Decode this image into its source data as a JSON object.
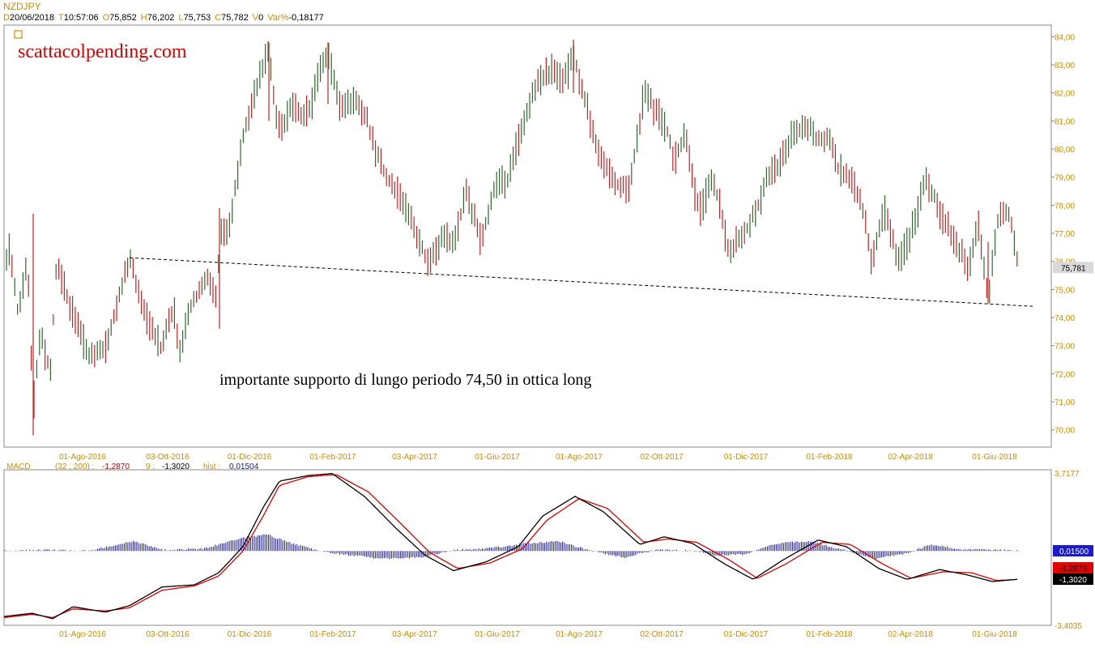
{
  "header": {
    "symbol": "NZDJPY",
    "quote": [
      {
        "key": "D",
        "value": "20/06/2018"
      },
      {
        "key": "T",
        "value": "10:57:06"
      },
      {
        "key": "O",
        "value": "75,852"
      },
      {
        "key": "H",
        "value": "76,202"
      },
      {
        "key": "L",
        "value": "75,753"
      },
      {
        "key": "C",
        "value": "75,782"
      },
      {
        "key": "V",
        "value": "0"
      },
      {
        "key": "Var%",
        "value": "-0,18177"
      }
    ]
  },
  "colors": {
    "axis_text": "#d08c00",
    "up_candle": "#2f6b2f",
    "down_candle": "#cc2222",
    "macd_line": "#000000",
    "signal_line": "#dd0000",
    "histogram": "#1a1a9a",
    "watermark": "#dd0000"
  },
  "chart_data": [
    {
      "type": "candlestick",
      "watermark": "scattacolpending.com",
      "annotation": "importante supporto di lungo periodo 74,50 in ottica long",
      "ylim": [
        69.5,
        84.3
      ],
      "y_ticks": [
        "84,00",
        "83,00",
        "82,00",
        "81,00",
        "80,00",
        "79,00",
        "78,00",
        "77,00",
        "76,00",
        "75,00",
        "74,00",
        "73,00",
        "72,00",
        "71,00",
        "70,00"
      ],
      "x_ticks": [
        "01-Ago-2016",
        "03-Ott-2016",
        "01-Dic-2016",
        "01-Feb-2017",
        "03-Apr-2017",
        "01-Giu-2017",
        "01-Ago-2017",
        "02-Ott-2017",
        "01-Dic-2017",
        "01-Feb-2018",
        "02-Apr-2018",
        "01-Giu-2018"
      ],
      "last_price_label": "75,781",
      "last_price": 75.781,
      "price_path": [
        [
          0,
          75.0
        ],
        [
          12,
          76.4
        ],
        [
          22,
          74.2
        ],
        [
          34,
          76.0
        ],
        [
          41,
          70.8
        ],
        [
          50,
          73.4
        ],
        [
          62,
          72.0
        ],
        [
          70,
          76.0
        ],
        [
          85,
          74.5
        ],
        [
          110,
          72.6
        ],
        [
          130,
          72.9
        ],
        [
          160,
          76.1
        ],
        [
          178,
          74.2
        ],
        [
          198,
          72.9
        ],
        [
          215,
          74.3
        ],
        [
          222,
          72.7
        ],
        [
          235,
          74.4
        ],
        [
          258,
          75.5
        ],
        [
          266,
          74.6
        ],
        [
          272,
          76.9
        ],
        [
          284,
          77.3
        ],
        [
          300,
          80.5
        ],
        [
          318,
          82.3
        ],
        [
          332,
          83.6
        ],
        [
          340,
          81.2
        ],
        [
          348,
          80.8
        ],
        [
          362,
          81.6
        ],
        [
          372,
          81.2
        ],
        [
          384,
          81.5
        ],
        [
          394,
          82.8
        ],
        [
          405,
          83.4
        ],
        [
          420,
          81.4
        ],
        [
          438,
          81.7
        ],
        [
          452,
          81.2
        ],
        [
          464,
          79.9
        ],
        [
          480,
          78.9
        ],
        [
          500,
          78.0
        ],
        [
          512,
          77.1
        ],
        [
          530,
          75.9
        ],
        [
          548,
          76.9
        ],
        [
          560,
          76.6
        ],
        [
          576,
          78.6
        ],
        [
          594,
          76.6
        ],
        [
          608,
          78.5
        ],
        [
          626,
          78.9
        ],
        [
          646,
          80.9
        ],
        [
          662,
          82.3
        ],
        [
          680,
          82.8
        ],
        [
          696,
          82.4
        ],
        [
          708,
          83.3
        ],
        [
          722,
          81.8
        ],
        [
          740,
          79.8
        ],
        [
          760,
          78.8
        ],
        [
          776,
          78.6
        ],
        [
          786,
          80.1
        ],
        [
          796,
          82.2
        ],
        [
          808,
          81.4
        ],
        [
          822,
          80.9
        ],
        [
          832,
          79.5
        ],
        [
          846,
          80.6
        ],
        [
          858,
          78.4
        ],
        [
          866,
          77.8
        ],
        [
          878,
          79.0
        ],
        [
          888,
          78.1
        ],
        [
          900,
          76.3
        ],
        [
          920,
          77.1
        ],
        [
          934,
          77.8
        ],
        [
          948,
          79.0
        ],
        [
          962,
          79.5
        ],
        [
          980,
          80.6
        ],
        [
          996,
          80.8
        ],
        [
          1010,
          80.4
        ],
        [
          1024,
          80.3
        ],
        [
          1034,
          79.3
        ],
        [
          1050,
          78.9
        ],
        [
          1064,
          78.1
        ],
        [
          1076,
          76.0
        ],
        [
          1092,
          77.8
        ],
        [
          1110,
          76.0
        ],
        [
          1124,
          76.9
        ],
        [
          1144,
          79.0
        ],
        [
          1160,
          77.8
        ],
        [
          1178,
          76.8
        ],
        [
          1196,
          75.8
        ],
        [
          1208,
          77.3
        ],
        [
          1220,
          74.6
        ],
        [
          1232,
          77.5
        ],
        [
          1246,
          77.7
        ],
        [
          1258,
          75.78
        ]
      ],
      "support_line": [
        [
          160,
          76.13
        ],
        [
          1275,
          74.4
        ]
      ]
    },
    {
      "type": "macd",
      "title": "MACD",
      "params": "(32 , 200) :",
      "macd_value": "-1,2870",
      "signal_label": "9 :",
      "signal_value": "-1,3020",
      "hist_label": "hist :",
      "hist_value": "0,01504",
      "ylim": [
        -3.4035,
        3.7177
      ],
      "y_max_label": "3,7177",
      "y_min_label": "-3,4035",
      "badges": [
        {
          "value": "0,01500",
          "num": 0.015,
          "style": "hist"
        },
        {
          "value": "-1,2870",
          "num": -1.287,
          "style": "macd"
        },
        {
          "value": "-1,3020",
          "num": -1.302,
          "style": "signal"
        }
      ],
      "x_ticks": [
        "01-Ago-2016",
        "03-Ott-2016",
        "01-Dic-2016",
        "01-Feb-2017",
        "03-Apr-2017",
        "01-Giu-2017",
        "01-Ago-2017",
        "02-Ott-2017",
        "01-Dic-2017",
        "01-Feb-2018",
        "02-Apr-2018",
        "01-Giu-2018"
      ],
      "macd_path": [
        [
          5,
          -3.0
        ],
        [
          40,
          -2.85
        ],
        [
          65,
          -3.1
        ],
        [
          90,
          -2.55
        ],
        [
          130,
          -2.8
        ],
        [
          160,
          -2.5
        ],
        [
          200,
          -1.65
        ],
        [
          240,
          -1.55
        ],
        [
          270,
          -1.0
        ],
        [
          300,
          0.2
        ],
        [
          325,
          2.0
        ],
        [
          345,
          3.2
        ],
        [
          380,
          3.45
        ],
        [
          410,
          3.55
        ],
        [
          450,
          2.5
        ],
        [
          490,
          1.0
        ],
        [
          525,
          -0.2
        ],
        [
          560,
          -0.9
        ],
        [
          600,
          -0.5
        ],
        [
          640,
          0.2
        ],
        [
          670,
          1.6
        ],
        [
          710,
          2.5
        ],
        [
          745,
          1.8
        ],
        [
          790,
          0.3
        ],
        [
          820,
          0.65
        ],
        [
          855,
          0.35
        ],
        [
          895,
          -0.6
        ],
        [
          930,
          -1.3
        ],
        [
          965,
          -0.45
        ],
        [
          1010,
          0.5
        ],
        [
          1045,
          0.2
        ],
        [
          1085,
          -0.8
        ],
        [
          1120,
          -1.3
        ],
        [
          1160,
          -0.85
        ],
        [
          1195,
          -1.1
        ],
        [
          1225,
          -1.4
        ],
        [
          1258,
          -1.29
        ]
      ],
      "signal_path": [
        [
          5,
          -3.05
        ],
        [
          40,
          -2.9
        ],
        [
          65,
          -3.05
        ],
        [
          90,
          -2.65
        ],
        [
          130,
          -2.75
        ],
        [
          160,
          -2.6
        ],
        [
          200,
          -1.8
        ],
        [
          240,
          -1.6
        ],
        [
          270,
          -1.15
        ],
        [
          300,
          0.0
        ],
        [
          325,
          1.6
        ],
        [
          345,
          3.0
        ],
        [
          380,
          3.4
        ],
        [
          415,
          3.5
        ],
        [
          455,
          2.7
        ],
        [
          495,
          1.25
        ],
        [
          530,
          -0.05
        ],
        [
          565,
          -0.8
        ],
        [
          605,
          -0.55
        ],
        [
          645,
          0.1
        ],
        [
          675,
          1.4
        ],
        [
          715,
          2.4
        ],
        [
          750,
          1.95
        ],
        [
          795,
          0.4
        ],
        [
          825,
          0.55
        ],
        [
          860,
          0.4
        ],
        [
          900,
          -0.4
        ],
        [
          935,
          -1.25
        ],
        [
          970,
          -0.6
        ],
        [
          1015,
          0.4
        ],
        [
          1050,
          0.3
        ],
        [
          1090,
          -0.6
        ],
        [
          1125,
          -1.25
        ],
        [
          1165,
          -0.95
        ],
        [
          1200,
          -1.0
        ],
        [
          1230,
          -1.35
        ],
        [
          1258,
          -1.3
        ]
      ],
      "hist_path": [
        [
          5,
          0.0
        ],
        [
          60,
          0.05
        ],
        [
          110,
          0.0
        ],
        [
          165,
          0.45
        ],
        [
          200,
          0.05
        ],
        [
          250,
          0.1
        ],
        [
          300,
          0.6
        ],
        [
          330,
          0.75
        ],
        [
          360,
          0.35
        ],
        [
          400,
          -0.05
        ],
        [
          470,
          -0.35
        ],
        [
          520,
          -0.3
        ],
        [
          560,
          0.05
        ],
        [
          600,
          0.1
        ],
        [
          650,
          0.35
        ],
        [
          690,
          0.45
        ],
        [
          725,
          0.05
        ],
        [
          770,
          -0.3
        ],
        [
          810,
          0.05
        ],
        [
          860,
          0.0
        ],
        [
          880,
          -0.2
        ],
        [
          920,
          -0.15
        ],
        [
          960,
          0.35
        ],
        [
          1000,
          0.45
        ],
        [
          1040,
          0.05
        ],
        [
          1080,
          -0.35
        ],
        [
          1120,
          -0.1
        ],
        [
          1150,
          0.3
        ],
        [
          1190,
          0.05
        ],
        [
          1230,
          0.05
        ],
        [
          1258,
          0.015
        ]
      ]
    }
  ]
}
